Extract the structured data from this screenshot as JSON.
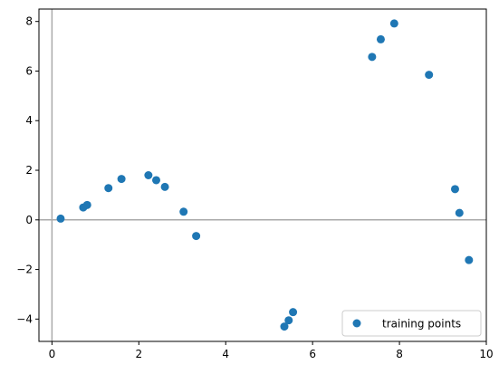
{
  "chart_data": {
    "type": "scatter",
    "xlim": [
      -0.3,
      10.0
    ],
    "ylim": [
      -4.9,
      8.5
    ],
    "xticks": [
      0,
      2,
      4,
      6,
      8,
      10
    ],
    "yticks": [
      -4,
      -2,
      0,
      2,
      4,
      6,
      8
    ],
    "reference_lines": {
      "horizontal": 0,
      "vertical": 0,
      "color": "#aaaaaa"
    },
    "grid": false,
    "legend_placement": "lower-right",
    "series": [
      {
        "name": "training points",
        "color": "#1f77b4",
        "points": [
          [
            0.2,
            0.05
          ],
          [
            0.72,
            0.5
          ],
          [
            0.81,
            0.6
          ],
          [
            1.3,
            1.28
          ],
          [
            1.6,
            1.65
          ],
          [
            2.22,
            1.8
          ],
          [
            2.4,
            1.6
          ],
          [
            2.6,
            1.33
          ],
          [
            3.03,
            0.33
          ],
          [
            3.32,
            -0.65
          ],
          [
            5.35,
            -4.3
          ],
          [
            5.45,
            -4.05
          ],
          [
            5.55,
            -3.72
          ],
          [
            7.37,
            6.57
          ],
          [
            7.57,
            7.28
          ],
          [
            7.88,
            7.92
          ],
          [
            8.68,
            5.85
          ],
          [
            9.28,
            1.24
          ],
          [
            9.38,
            0.28
          ],
          [
            9.6,
            -1.62
          ]
        ]
      }
    ]
  }
}
